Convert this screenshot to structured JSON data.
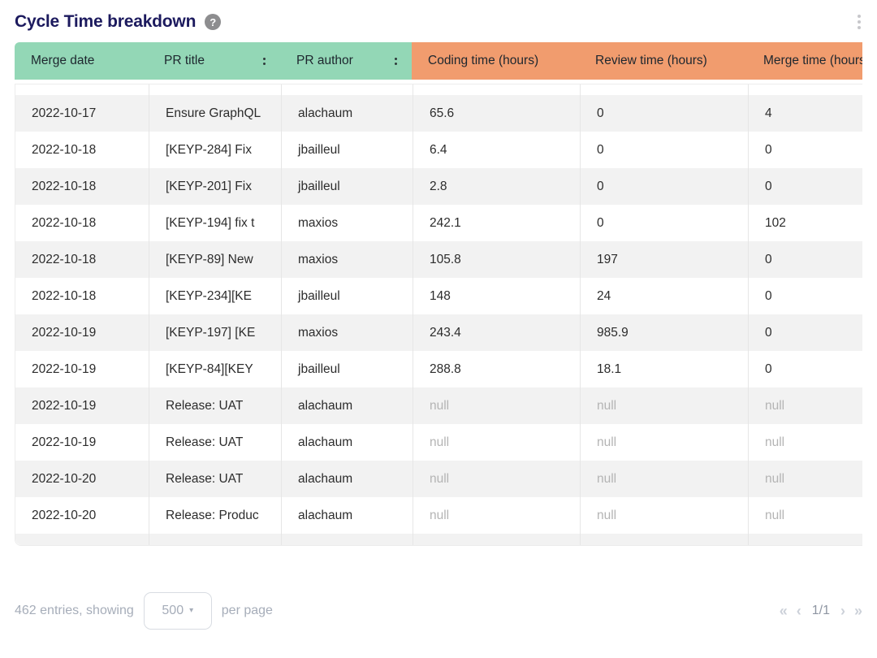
{
  "widget": {
    "title": "Cycle Time breakdown",
    "help_glyph": "?"
  },
  "table": {
    "columns": [
      {
        "label": "Merge date",
        "group": "green",
        "handle": false
      },
      {
        "label": "PR title",
        "group": "green",
        "handle": true
      },
      {
        "label": "PR author",
        "group": "green",
        "handle": true
      },
      {
        "label": "Coding time (hours)",
        "group": "orange",
        "handle": false
      },
      {
        "label": "Review time (hours)",
        "group": "orange",
        "handle": false
      },
      {
        "label": "Merge time (hours)",
        "group": "orange",
        "handle": false
      }
    ],
    "rows": [
      [
        "2022-10-17",
        "Ensure GraphQL",
        "alachaum",
        "65.6",
        "0",
        "4"
      ],
      [
        "2022-10-18",
        "[KEYP-284] Fix",
        "jbailleul",
        "6.4",
        "0",
        "0"
      ],
      [
        "2022-10-18",
        "[KEYP-201] Fix",
        "jbailleul",
        "2.8",
        "0",
        "0"
      ],
      [
        "2022-10-18",
        "[KEYP-194] fix t",
        "maxios",
        "242.1",
        "0",
        "102"
      ],
      [
        "2022-10-18",
        "[KEYP-89] New",
        "maxios",
        "105.8",
        "197",
        "0"
      ],
      [
        "2022-10-18",
        "[KEYP-234][KE",
        "jbailleul",
        "148",
        "24",
        "0"
      ],
      [
        "2022-10-19",
        "[KEYP-197] [KE",
        "maxios",
        "243.4",
        "985.9",
        "0"
      ],
      [
        "2022-10-19",
        "[KEYP-84][KEY",
        "jbailleul",
        "288.8",
        "18.1",
        "0"
      ],
      [
        "2022-10-19",
        "Release: UAT",
        "alachaum",
        "null",
        "null",
        "null"
      ],
      [
        "2022-10-19",
        "Release: UAT",
        "alachaum",
        "null",
        "null",
        "null"
      ],
      [
        "2022-10-20",
        "Release: UAT",
        "alachaum",
        "null",
        "null",
        "null"
      ],
      [
        "2022-10-20",
        "Release: Produc",
        "alachaum",
        "null",
        "null",
        "null"
      ]
    ]
  },
  "footer": {
    "entries_text": "462 entries, showing",
    "page_size": "500",
    "caret_glyph": "▾",
    "per_page_text": "per page",
    "page_indicator": "1/1",
    "first_glyph": "«",
    "prev_glyph": "‹",
    "next_glyph": "›",
    "last_glyph": "»"
  },
  "colors": {
    "header_green": "#93d7b6",
    "header_orange": "#f19c6e",
    "title_navy": "#1c1a5e",
    "row_alt_gray": "#f2f2f2",
    "null_text": "#b4b4b4",
    "footer_text": "#a6adb9"
  }
}
